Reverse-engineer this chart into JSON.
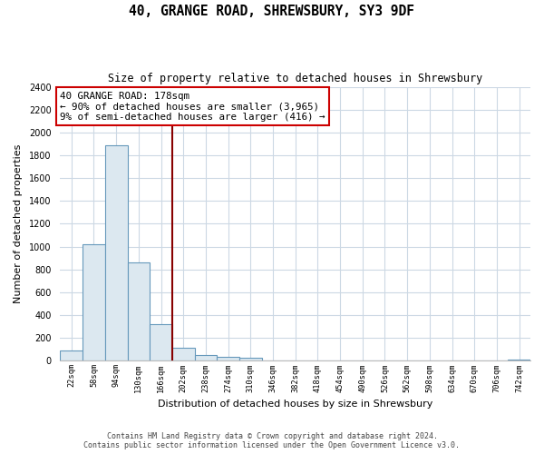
{
  "title": "40, GRANGE ROAD, SHREWSBURY, SY3 9DF",
  "subtitle": "Size of property relative to detached houses in Shrewsbury",
  "xlabel": "Distribution of detached houses by size in Shrewsbury",
  "ylabel": "Number of detached properties",
  "bar_labels": [
    "22sqm",
    "58sqm",
    "94sqm",
    "130sqm",
    "166sqm",
    "202sqm",
    "238sqm",
    "274sqm",
    "310sqm",
    "346sqm",
    "382sqm",
    "418sqm",
    "454sqm",
    "490sqm",
    "526sqm",
    "562sqm",
    "598sqm",
    "634sqm",
    "670sqm",
    "706sqm",
    "742sqm"
  ],
  "bar_values": [
    90,
    1020,
    1890,
    860,
    320,
    115,
    50,
    35,
    25,
    0,
    0,
    0,
    0,
    0,
    0,
    0,
    0,
    0,
    0,
    0,
    15
  ],
  "bar_color": "#dce8f0",
  "bar_edge_color": "#6699bb",
  "vline_x": 4.5,
  "vline_color": "#880000",
  "annotation_title": "40 GRANGE ROAD: 178sqm",
  "annotation_line1": "← 90% of detached houses are smaller (3,965)",
  "annotation_line2": "9% of semi-detached houses are larger (416) →",
  "annotation_box_color": "#ffffff",
  "annotation_box_edge": "#cc0000",
  "ylim": [
    0,
    2400
  ],
  "yticks": [
    0,
    200,
    400,
    600,
    800,
    1000,
    1200,
    1400,
    1600,
    1800,
    2000,
    2200,
    2400
  ],
  "footer1": "Contains HM Land Registry data © Crown copyright and database right 2024.",
  "footer2": "Contains public sector information licensed under the Open Government Licence v3.0.",
  "background_color": "#ffffff",
  "grid_color": "#ccd8e4"
}
